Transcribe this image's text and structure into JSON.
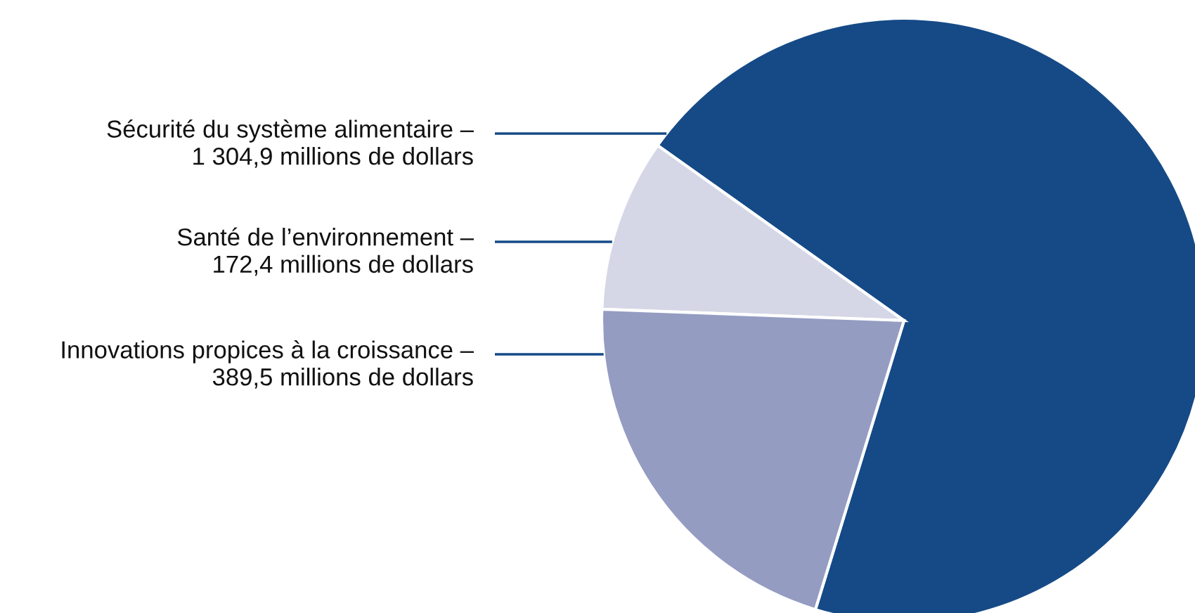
{
  "chart_data": {
    "type": "pie",
    "categories": [
      "Sécurité du système alimentaire –",
      "Santé de l’environnement –",
      "Innovations propices à la croissance –"
    ],
    "values": [
      1304.9,
      172.4,
      389.5
    ],
    "value_labels": [
      "1 304,9 millions de dollars",
      "172,4 millions de dollars",
      "389,5 millions de dollars"
    ],
    "colors": [
      "#154a87",
      "#d5d7e6",
      "#949cc2"
    ],
    "legend": false
  }
}
